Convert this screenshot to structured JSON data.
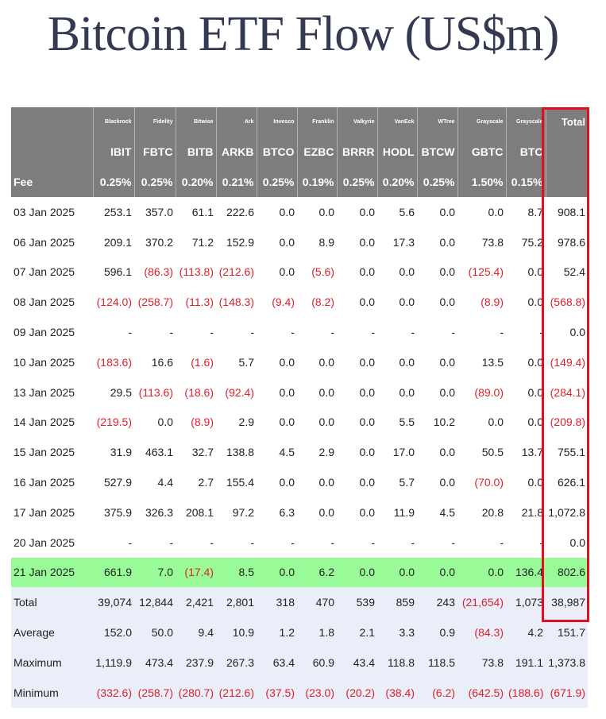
{
  "title": "Bitcoin ETF Flow (US$m)",
  "colors": {
    "header_bg": "#7d7d7d",
    "highlight_row": "#98fb98",
    "summary_bg": "#eaeef8",
    "negative": "#e0202a",
    "total_box": "#e01020"
  },
  "header": {
    "issuers": [
      "Blackrock",
      "Fidelity",
      "Bitwise",
      "Ark",
      "Invesco",
      "Franklin",
      "Valkyrie",
      "VanEck",
      "WTree",
      "Grayscale",
      "Grayscale"
    ],
    "total_label": "Total",
    "tickers": [
      "IBIT",
      "FBTC",
      "BITB",
      "ARKB",
      "BTCO",
      "EZBC",
      "BRRR",
      "HODL",
      "BTCW",
      "GBTC",
      "BTC"
    ],
    "fee_label": "Fee",
    "fees": [
      "0.25%",
      "0.25%",
      "0.20%",
      "0.21%",
      "0.25%",
      "0.19%",
      "0.25%",
      "0.20%",
      "0.25%",
      "1.50%",
      "0.15%"
    ]
  },
  "rows": [
    {
      "date": "03 Jan 2025",
      "vals": [
        "253.1",
        "357.0",
        "61.1",
        "222.6",
        "0.0",
        "0.0",
        "0.0",
        "5.6",
        "0.0",
        "0.0",
        "8.7"
      ],
      "total": "908.1"
    },
    {
      "date": "06 Jan 2025",
      "vals": [
        "209.1",
        "370.2",
        "71.2",
        "152.9",
        "0.0",
        "8.9",
        "0.0",
        "17.3",
        "0.0",
        "73.8",
        "75.2"
      ],
      "total": "978.6"
    },
    {
      "date": "07 Jan 2025",
      "vals": [
        "596.1",
        "(86.3)",
        "(113.8)",
        "(212.6)",
        "0.0",
        "(5.6)",
        "0.0",
        "0.0",
        "0.0",
        "(125.4)",
        "0.0"
      ],
      "total": "52.4"
    },
    {
      "date": "08 Jan 2025",
      "vals": [
        "(124.0)",
        "(258.7)",
        "(11.3)",
        "(148.3)",
        "(9.4)",
        "(8.2)",
        "0.0",
        "0.0",
        "0.0",
        "(8.9)",
        "0.0"
      ],
      "total": "(568.8)"
    },
    {
      "date": "09 Jan 2025",
      "vals": [
        "-",
        "-",
        "-",
        "-",
        "-",
        "-",
        "-",
        "-",
        "-",
        "-",
        "-"
      ],
      "total": "0.0"
    },
    {
      "date": "10 Jan 2025",
      "vals": [
        "(183.6)",
        "16.6",
        "(1.6)",
        "5.7",
        "0.0",
        "0.0",
        "0.0",
        "0.0",
        "0.0",
        "13.5",
        "0.0"
      ],
      "total": "(149.4)"
    },
    {
      "date": "13 Jan 2025",
      "vals": [
        "29.5",
        "(113.6)",
        "(18.6)",
        "(92.4)",
        "0.0",
        "0.0",
        "0.0",
        "0.0",
        "0.0",
        "(89.0)",
        "0.0"
      ],
      "total": "(284.1)"
    },
    {
      "date": "14 Jan 2025",
      "vals": [
        "(219.5)",
        "0.0",
        "(8.9)",
        "2.9",
        "0.0",
        "0.0",
        "0.0",
        "5.5",
        "10.2",
        "0.0",
        "0.0"
      ],
      "total": "(209.8)"
    },
    {
      "date": "15 Jan 2025",
      "vals": [
        "31.9",
        "463.1",
        "32.7",
        "138.8",
        "4.5",
        "2.9",
        "0.0",
        "17.0",
        "0.0",
        "50.5",
        "13.7"
      ],
      "total": "755.1"
    },
    {
      "date": "16 Jan 2025",
      "vals": [
        "527.9",
        "4.4",
        "2.7",
        "155.4",
        "0.0",
        "0.0",
        "0.0",
        "5.7",
        "0.0",
        "(70.0)",
        "0.0"
      ],
      "total": "626.1"
    },
    {
      "date": "17 Jan 2025",
      "vals": [
        "375.9",
        "326.3",
        "208.1",
        "97.2",
        "6.3",
        "0.0",
        "0.0",
        "11.9",
        "4.5",
        "20.8",
        "21.8"
      ],
      "total": "1,072.8"
    },
    {
      "date": "20 Jan 2025",
      "vals": [
        "-",
        "-",
        "-",
        "-",
        "-",
        "-",
        "-",
        "-",
        "-",
        "-",
        "-"
      ],
      "total": "0.0"
    },
    {
      "date": "21 Jan 2025",
      "vals": [
        "661.9",
        "7.0",
        "(17.4)",
        "8.5",
        "0.0",
        "6.2",
        "0.0",
        "0.0",
        "0.0",
        "0.0",
        "136.4"
      ],
      "total": "802.6",
      "highlight": true
    }
  ],
  "summary": [
    {
      "label": "Total",
      "vals": [
        "39,074",
        "12,844",
        "2,421",
        "2,801",
        "318",
        "470",
        "539",
        "859",
        "243",
        "(21,654)",
        "1,073"
      ],
      "total": "38,987"
    },
    {
      "label": "Average",
      "vals": [
        "152.0",
        "50.0",
        "9.4",
        "10.9",
        "1.2",
        "1.8",
        "2.1",
        "3.3",
        "0.9",
        "(84.3)",
        "4.2"
      ],
      "total": "151.7"
    },
    {
      "label": "Maximum",
      "vals": [
        "1,119.9",
        "473.4",
        "237.9",
        "267.3",
        "63.4",
        "60.9",
        "43.4",
        "118.8",
        "118.5",
        "73.8",
        "191.1"
      ],
      "total": "1,373.8"
    },
    {
      "label": "Minimum",
      "vals": [
        "(332.6)",
        "(258.7)",
        "(280.7)",
        "(212.6)",
        "(37.5)",
        "(23.0)",
        "(20.2)",
        "(38.4)",
        "(6.2)",
        "(642.5)",
        "(188.6)"
      ],
      "total": "(671.9)"
    }
  ]
}
